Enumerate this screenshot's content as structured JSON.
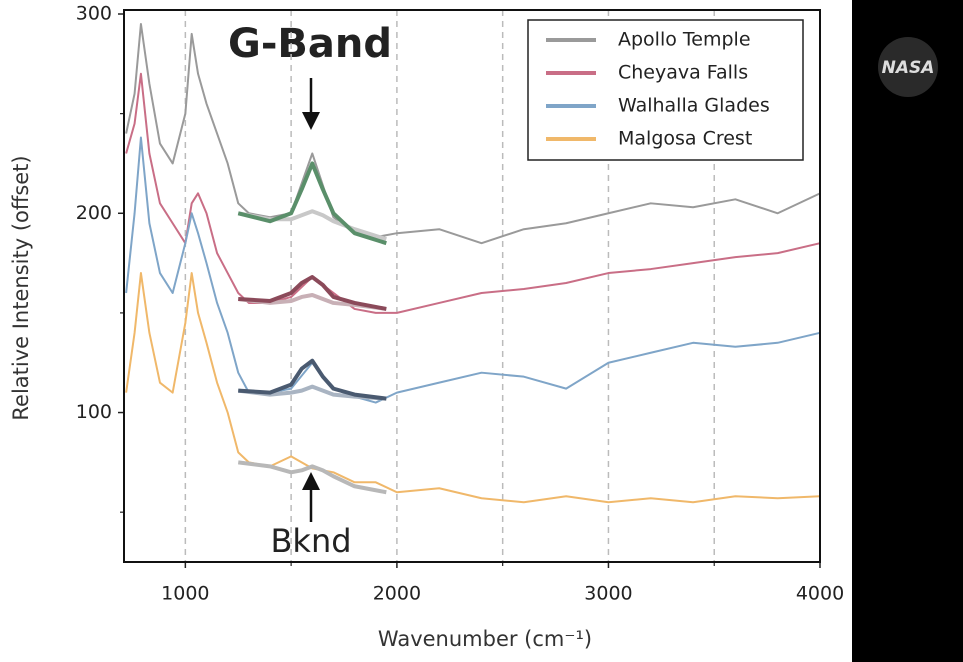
{
  "chart_data": {
    "type": "line",
    "xlabel": "Wavenumber (cm⁻¹)",
    "ylabel": "Relative Intensity (offset)",
    "x": [
      720,
      760,
      790,
      830,
      880,
      940,
      1000,
      1030,
      1060,
      1100,
      1150,
      1200,
      1250,
      1300,
      1400,
      1500,
      1600,
      1700,
      1800,
      1900,
      2000,
      2200,
      2400,
      2600,
      2800,
      3000,
      3200,
      3400,
      3600,
      3800,
      4000
    ],
    "series": [
      {
        "name": "Apollo Temple",
        "color": "#9a9a9a",
        "values": [
          240,
          260,
          295,
          265,
          235,
          225,
          250,
          290,
          270,
          255,
          240,
          225,
          205,
          200,
          198,
          200,
          230,
          198,
          190,
          188,
          190,
          192,
          185,
          192,
          195,
          200,
          205,
          203,
          207,
          200,
          210
        ]
      },
      {
        "name": "Cheyava Falls",
        "color": "#c96e86",
        "values": [
          230,
          245,
          270,
          230,
          205,
          195,
          185,
          205,
          210,
          200,
          180,
          170,
          160,
          155,
          155,
          158,
          168,
          160,
          152,
          150,
          150,
          155,
          160,
          162,
          165,
          170,
          172,
          175,
          178,
          180,
          185
        ]
      },
      {
        "name": "Walhalla Glades",
        "color": "#7fa5c8",
        "values": [
          160,
          200,
          238,
          195,
          170,
          160,
          185,
          200,
          190,
          175,
          155,
          140,
          120,
          110,
          110,
          112,
          125,
          112,
          108,
          105,
          110,
          115,
          120,
          118,
          112,
          125,
          130,
          135,
          133,
          135,
          140
        ]
      },
      {
        "name": "Malgosa Crest",
        "color": "#f0b86a",
        "values": [
          110,
          140,
          170,
          140,
          115,
          110,
          145,
          170,
          150,
          135,
          115,
          100,
          80,
          75,
          73,
          78,
          72,
          70,
          65,
          65,
          60,
          62,
          57,
          55,
          58,
          55,
          57,
          55,
          58,
          57,
          58
        ]
      }
    ],
    "fit_x": [
      1250,
      1400,
      1500,
      1550,
      1600,
      1650,
      1700,
      1800,
      1950
    ],
    "fits": [
      {
        "color": "#c8c8c8",
        "values": [
          200,
          197,
          197,
          199,
          201,
          199,
          196,
          192,
          187
        ]
      },
      {
        "color": "#5a8f6a",
        "values": [
          200,
          196,
          200,
          212,
          225,
          212,
          200,
          190,
          185
        ]
      },
      {
        "color": "#c8b0b6",
        "values": [
          157,
          155,
          156,
          158,
          159,
          157,
          155,
          154,
          152
        ]
      },
      {
        "color": "#8b4a5a",
        "values": [
          157,
          156,
          160,
          165,
          168,
          164,
          158,
          155,
          152
        ]
      },
      {
        "color": "#a9b4c2",
        "values": [
          111,
          109,
          110,
          111,
          113,
          111,
          109,
          108,
          107
        ]
      },
      {
        "color": "#4a5a70",
        "values": [
          111,
          110,
          114,
          122,
          126,
          118,
          112,
          109,
          107
        ]
      },
      {
        "color": "#b8b8b8",
        "values": [
          75,
          73,
          70,
          71,
          73,
          71,
          68,
          63,
          60
        ]
      }
    ],
    "xlim": [
      710,
      4000
    ],
    "ylim": [
      25,
      300
    ],
    "xticks": [
      1000,
      2000,
      3000,
      4000
    ],
    "xminorticks": [
      1500,
      2500,
      3500
    ],
    "yticks": [
      100,
      200,
      300
    ],
    "yminorticks": [
      50,
      150,
      250
    ],
    "grid": true,
    "legend": "upper right",
    "annotations": [
      "G-Band",
      "Bknd"
    ],
    "logo": "NASA"
  }
}
